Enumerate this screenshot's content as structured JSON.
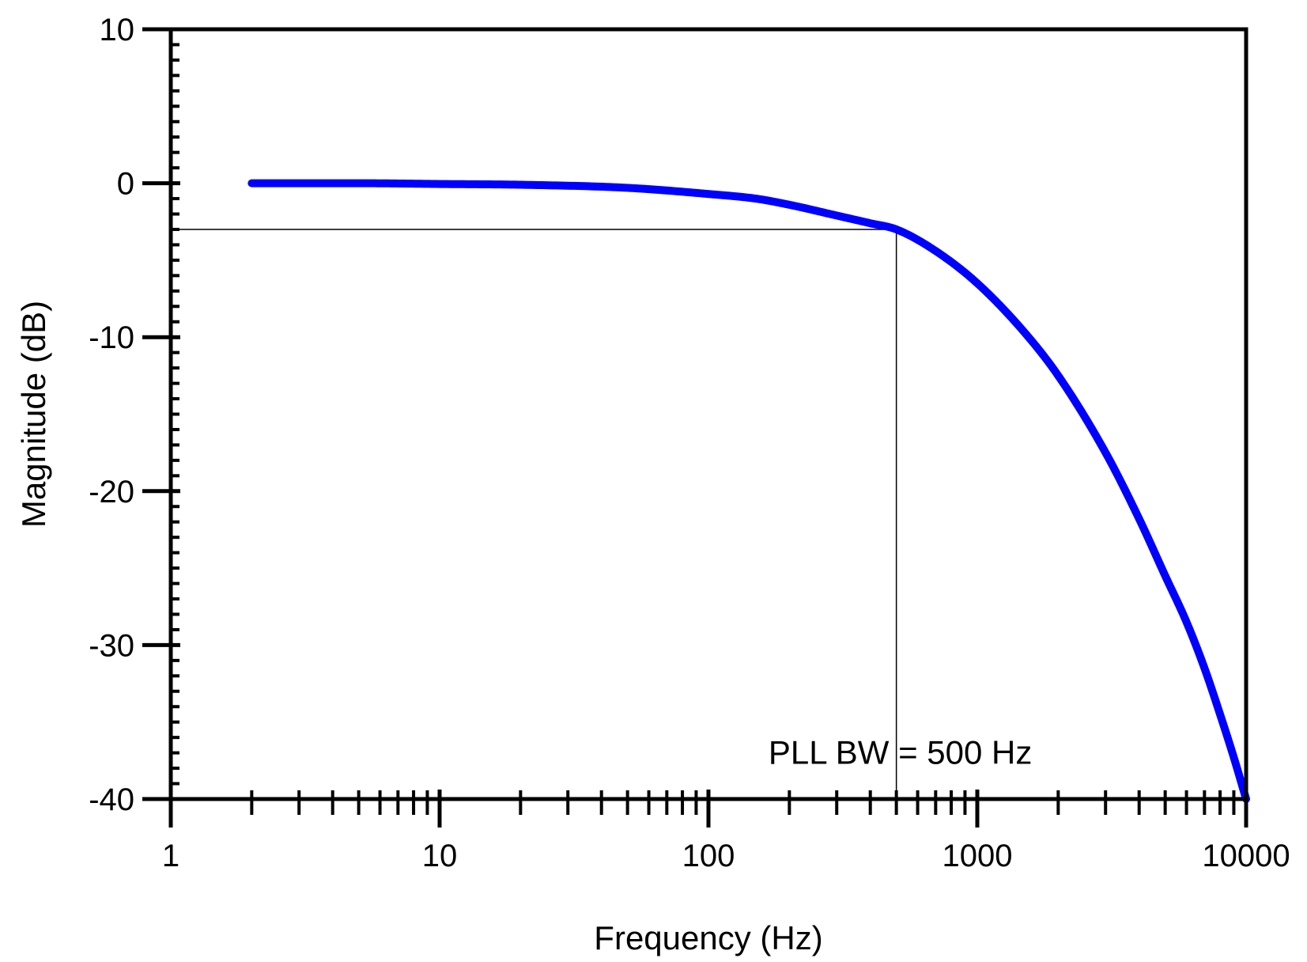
{
  "chart_data": {
    "type": "line",
    "title": "",
    "xlabel": "Frequency (Hz)",
    "ylabel": "Magnitude (dB)",
    "xscale": "log",
    "xlim": [
      1,
      10000
    ],
    "ylim": [
      -40,
      10
    ],
    "x_ticks": [
      1,
      10,
      100,
      1000,
      10000
    ],
    "x_tick_labels": [
      "1",
      "10",
      "100",
      "1000",
      "10000"
    ],
    "y_ticks": [
      10,
      0,
      -10,
      -20,
      -30,
      -40
    ],
    "y_tick_labels": [
      "10",
      "0",
      "-10",
      "-20",
      "-30",
      "-40"
    ],
    "grid": false,
    "series": [
      {
        "name": "Magnitude",
        "color": "#0000ff",
        "x": [
          2,
          5,
          10,
          20,
          50,
          100,
          150,
          200,
          300,
          400,
          500,
          700,
          1000,
          1500,
          2000,
          3000,
          4000,
          5000,
          6000,
          7000,
          8000,
          9000,
          10000
        ],
        "y": [
          0,
          0,
          -0.05,
          -0.1,
          -0.3,
          -0.7,
          -1.0,
          -1.4,
          -2.1,
          -2.6,
          -3.0,
          -4.4,
          -6.5,
          -9.7,
          -12.5,
          -17.5,
          -21.8,
          -25.5,
          -28.5,
          -31.5,
          -34.5,
          -37.3,
          -40
        ]
      }
    ],
    "annotations": [
      {
        "type": "hline",
        "y": -3,
        "x_from": 1,
        "x_to": 500
      },
      {
        "type": "vline",
        "x": 500,
        "y_from": -40,
        "y_to": -3
      },
      {
        "type": "text",
        "text": "PLL BW = 500 Hz",
        "x": 500,
        "y": -37
      }
    ]
  }
}
